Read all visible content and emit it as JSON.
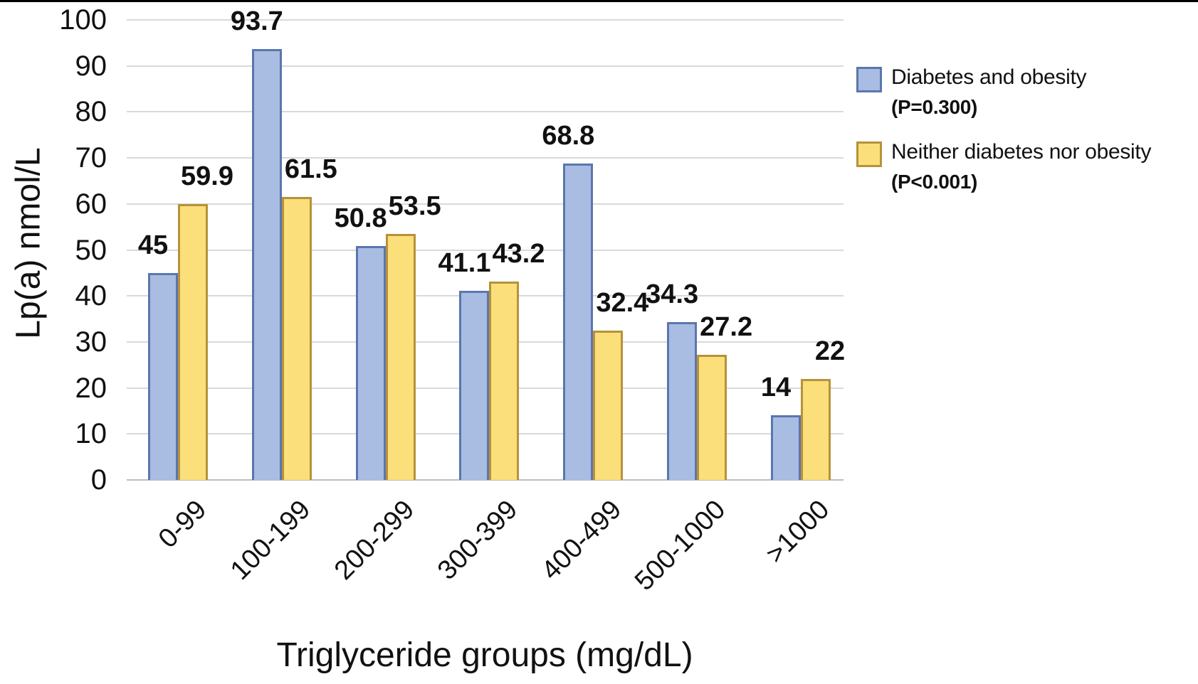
{
  "chart_data": {
    "type": "bar",
    "title": "",
    "xlabel": "Triglyceride groups (mg/dL)",
    "ylabel": "Lp(a) nmol/L",
    "categories": [
      "0-99",
      "100-199",
      "200-299",
      "300-399",
      "400-499",
      "500-1000",
      ">1000"
    ],
    "series": [
      {
        "name": "Diabetes and obesity",
        "p_label": "(P=0.300)",
        "values": [
          45,
          93.7,
          50.8,
          41.1,
          68.8,
          34.3,
          14
        ],
        "fill": "#a9bce1",
        "border": "#5b76ae"
      },
      {
        "name": "Neither diabetes nor obesity",
        "p_label": "(P<0.001)",
        "values": [
          59.9,
          61.5,
          53.5,
          43.2,
          32.4,
          27.2,
          22
        ],
        "fill": "#fbdf7a",
        "border": "#b6923a"
      }
    ],
    "ylim": [
      0,
      100
    ],
    "yticks": [
      0,
      10,
      20,
      30,
      40,
      50,
      60,
      70,
      80,
      90,
      100
    ],
    "grid": true,
    "legend_position": "right",
    "colors": {
      "gridline": "#d9d9d9",
      "axis_line": "#bdbdbd",
      "text": "#111111",
      "top_border": "#000000"
    }
  }
}
